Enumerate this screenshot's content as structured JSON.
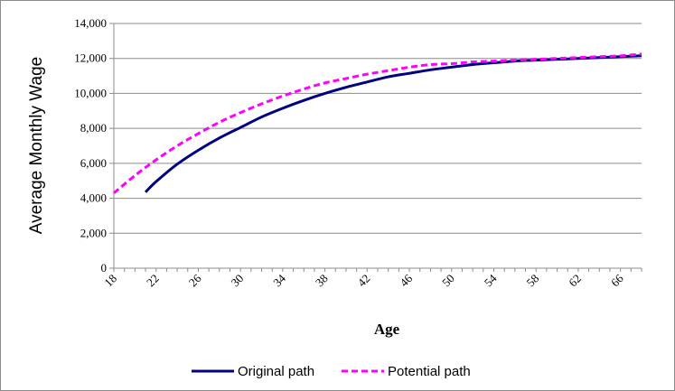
{
  "chart_data": {
    "type": "line",
    "title": "",
    "xlabel": "Age",
    "ylabel": "Average Monthly Wage",
    "xlim": [
      18,
      68
    ],
    "ylim": [
      0,
      14000
    ],
    "x_ticks": [
      "18",
      "22",
      "26",
      "30",
      "34",
      "38",
      "42",
      "46",
      "50",
      "54",
      "58",
      "62",
      "66"
    ],
    "y_ticks": [
      "0",
      "2,000",
      "4,000",
      "6,000",
      "8,000",
      "10,000",
      "12,000",
      "14,000"
    ],
    "grid": "horizontal",
    "legend_position": "bottom",
    "series": [
      {
        "name": "Original path",
        "color": "#000080",
        "style": "solid",
        "x": [
          21,
          22,
          24,
          26,
          28,
          30,
          32,
          34,
          36,
          38,
          40,
          42,
          44,
          46,
          48,
          50,
          52,
          54,
          56,
          58,
          60,
          62,
          64,
          66,
          68
        ],
        "values": [
          4350,
          4950,
          5950,
          6750,
          7450,
          8050,
          8650,
          9150,
          9600,
          10000,
          10350,
          10650,
          10950,
          11150,
          11350,
          11500,
          11650,
          11750,
          11850,
          11900,
          11950,
          12000,
          12050,
          12100,
          12150
        ]
      },
      {
        "name": "Potential path",
        "color": "#ff00ff",
        "style": "dashed",
        "x": [
          18,
          20,
          22,
          24,
          26,
          28,
          30,
          32,
          34,
          36,
          38,
          40,
          42,
          44,
          46,
          48,
          50,
          52,
          54,
          56,
          58,
          60,
          62,
          64,
          66,
          68
        ],
        "values": [
          4300,
          5300,
          6200,
          7000,
          7700,
          8350,
          8900,
          9400,
          9850,
          10250,
          10600,
          10850,
          11100,
          11300,
          11500,
          11650,
          11700,
          11800,
          11850,
          11900,
          11950,
          12000,
          12050,
          12100,
          12150,
          12250
        ]
      }
    ]
  }
}
